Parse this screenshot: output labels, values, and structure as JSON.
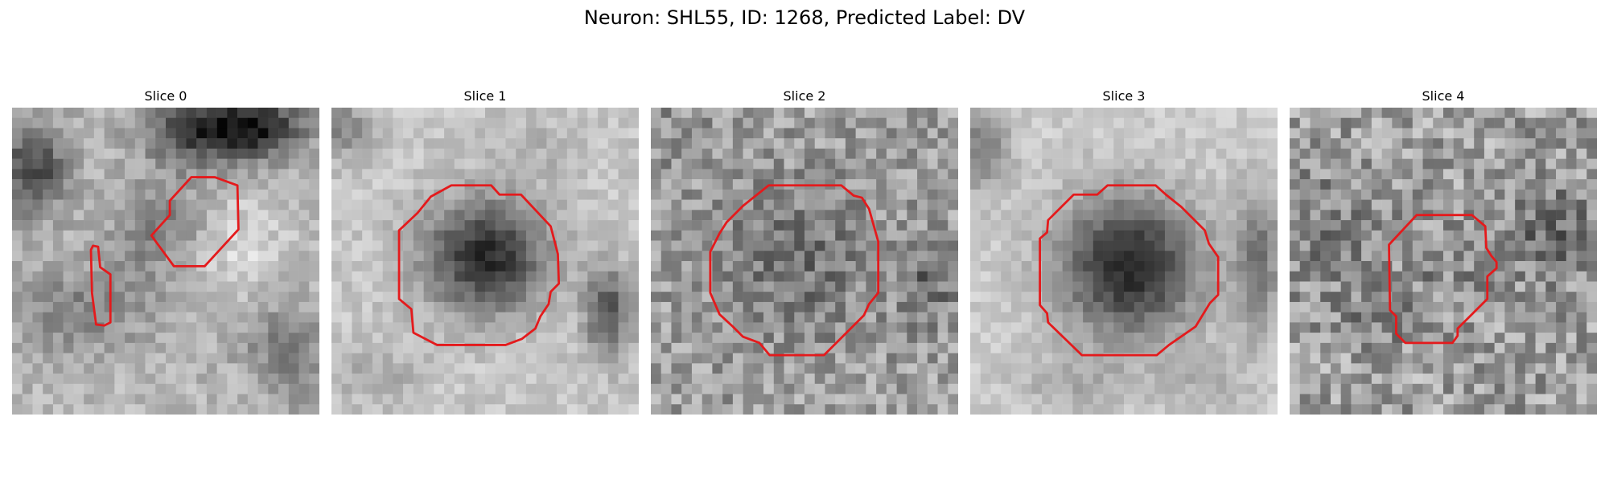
{
  "figure": {
    "title": "Neuron: SHL55, ID: 1268, Predicted Label: DV"
  },
  "colors": {
    "contour": "#e41a1c",
    "background": "#ffffff"
  },
  "panels": [
    {
      "title": "Slice 0"
    },
    {
      "title": "Slice 1"
    },
    {
      "title": "Slice 2"
    },
    {
      "title": "Slice 3"
    },
    {
      "title": "Slice 4"
    }
  ]
}
